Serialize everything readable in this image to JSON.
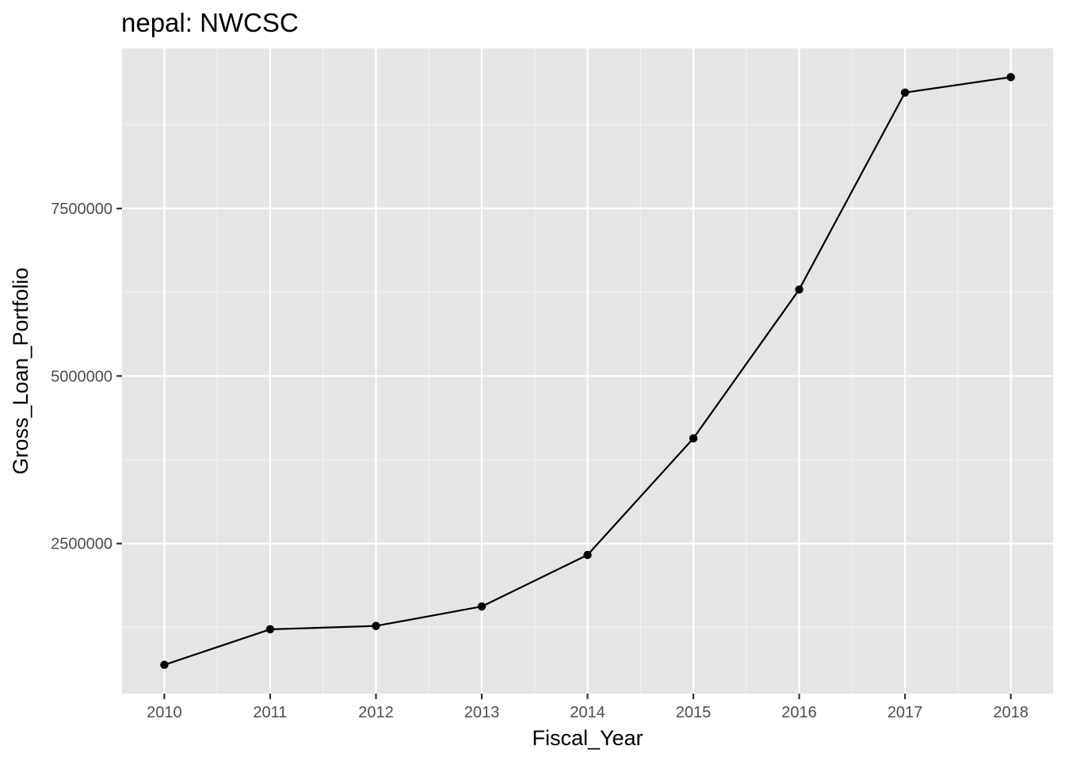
{
  "chart_data": {
    "type": "line",
    "title": "nepal:  NWCSC",
    "xlabel": "Fiscal_Year",
    "ylabel": "Gross_Loan_Portfolio",
    "x": [
      2010,
      2011,
      2012,
      2013,
      2014,
      2015,
      2016,
      2017,
      2018
    ],
    "series": [
      {
        "values": [
          690000,
          1220000,
          1270000,
          1560000,
          2330000,
          4070000,
          6290000,
          9230000,
          9460000
        ],
        "markers": true
      }
    ],
    "x_ticks": [
      "2010",
      "2011",
      "2012",
      "2013",
      "2014",
      "2015",
      "2016",
      "2017",
      "2018"
    ],
    "y_ticks": [
      {
        "value": 2500000,
        "label": "2500000"
      },
      {
        "value": 5000000,
        "label": "5000000"
      },
      {
        "value": 7500000,
        "label": "7500000"
      }
    ],
    "xlim": [
      2009.6,
      2018.4
    ],
    "ylim": [
      260000,
      9890000
    ],
    "grid": true,
    "colors": {
      "panel_background": "#e5e5e5",
      "grid_major": "#ffffff",
      "grid_minor": "#f2f2f2",
      "line": "#000000",
      "points": "#000000",
      "tick_label": "#4d4d4d",
      "tick_mark": "#333333"
    }
  }
}
